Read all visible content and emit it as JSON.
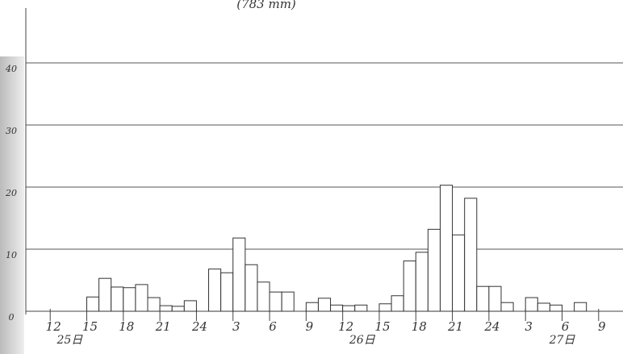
{
  "chart_data": {
    "type": "histogram",
    "title": "(783 mm)",
    "bins": [
      15,
      16,
      17,
      18,
      19,
      20,
      21,
      22,
      23,
      24,
      25,
      26,
      27,
      28,
      29,
      30,
      31,
      32,
      33,
      34,
      35,
      36,
      37,
      38,
      39,
      40,
      41,
      42,
      43,
      44,
      45,
      46,
      47,
      48,
      49,
      50,
      51,
      52,
      53,
      54,
      55,
      56
    ],
    "values": [
      2.3,
      5.3,
      3.9,
      3.8,
      4.3,
      2.2,
      0.9,
      0.8,
      1.7,
      0,
      6.8,
      6.2,
      11.8,
      7.5,
      4.7,
      3.1,
      3.1,
      0,
      1.4,
      2.1,
      1.0,
      0.9,
      1.0,
      0,
      1.2,
      2.5,
      8.1,
      9.5,
      13.2,
      20.3,
      12.3,
      18.2,
      4.0,
      4.0,
      1.4,
      0,
      2.2,
      1.3,
      1.0,
      0,
      1.4
    ],
    "xlim": [
      10,
      59
    ],
    "xticks": [
      12,
      15,
      18,
      21,
      24,
      {
        "value": 27,
        "label": "3"
      },
      {
        "value": 30,
        "label": "6"
      },
      {
        "value": 33,
        "label": "9"
      },
      {
        "value": 36,
        "label": "12"
      },
      {
        "value": 39,
        "label": "15"
      },
      {
        "value": 42,
        "label": "18"
      },
      {
        "value": 45,
        "label": "21"
      },
      {
        "value": 48,
        "label": "24"
      },
      {
        "value": 51,
        "label": "3"
      },
      {
        "value": 54,
        "label": "6"
      },
      {
        "value": 57,
        "label": "9"
      }
    ],
    "ylim": [
      0,
      50
    ],
    "yticks": [
      0,
      10,
      20,
      30,
      40
    ],
    "grid": true,
    "color": "#ffffff",
    "annotations": [
      {
        "text": "25日",
        "x": 13.6
      },
      {
        "text": "26日",
        "x": 37.6
      },
      {
        "text": "27日",
        "x": 54
      }
    ]
  }
}
